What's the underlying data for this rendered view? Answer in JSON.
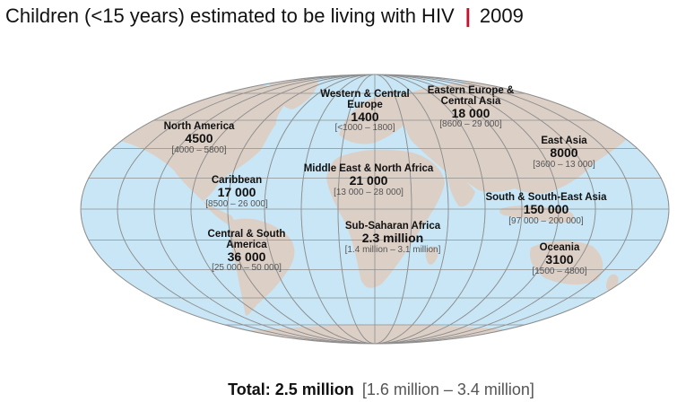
{
  "title": {
    "main": "Children (<15 years) estimated to be living with HIV",
    "year": "2009"
  },
  "colors": {
    "ocean": "#c8e6f5",
    "land": "#dccfc6",
    "grid": "#8f8f8f",
    "accent": "#c8102e"
  },
  "regions": [
    {
      "name": "North America",
      "value": "4500",
      "range": "[4000 – 5800]"
    },
    {
      "name": "Western & Central Europe",
      "value": "1400",
      "range": "[<1000 – 1800]"
    },
    {
      "name": "Eastern Europe & Central Asia",
      "value": "18 000",
      "range": "[8600 – 29 000]"
    },
    {
      "name": "East Asia",
      "value": "8000",
      "range": "[3600 – 13 000]"
    },
    {
      "name": "Caribbean",
      "value": "17 000",
      "range": "[8500 – 26 000]"
    },
    {
      "name": "Middle East & North Africa",
      "value": "21 000",
      "range": "[13 000 – 28 000]"
    },
    {
      "name": "South & South-East Asia",
      "value": "150 000",
      "range": "[97 000 – 200 000]"
    },
    {
      "name": "Sub-Saharan Africa",
      "value": "2.3 million",
      "range": "[1.4 million – 3.1 million]"
    },
    {
      "name": "Central & South America",
      "value": "36 000",
      "range": "[25 000 – 50 000]"
    },
    {
      "name": "Oceania",
      "value": "3100",
      "range": "[1500 – 4800]"
    }
  ],
  "total": {
    "label": "Total:",
    "value": "2.5 million",
    "range": "[1.6 million – 3.4 million]"
  }
}
